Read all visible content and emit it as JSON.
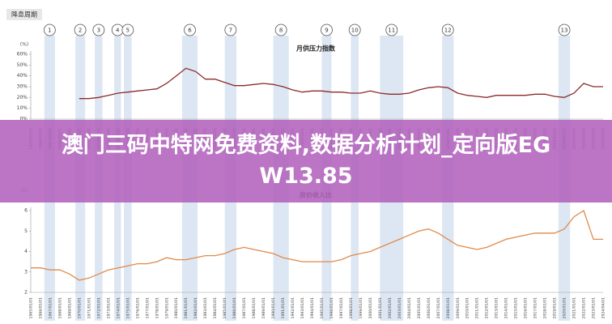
{
  "header": {
    "label": "降息周期"
  },
  "cycles": [
    {
      "label": "1",
      "start": 1966.4,
      "end": 1967.5
    },
    {
      "label": "2",
      "start": 1969.6,
      "end": 1970.6
    },
    {
      "label": "3",
      "start": 1971.6,
      "end": 1972.4
    },
    {
      "label": "4",
      "start": 1973.6,
      "end": 1974.3
    },
    {
      "label": "5",
      "start": 1974.6,
      "end": 1975.4
    },
    {
      "label": "6",
      "start": 1980.6,
      "end": 1982.2
    },
    {
      "label": "7",
      "start": 1985.0,
      "end": 1986.2
    },
    {
      "label": "8",
      "start": 1990.0,
      "end": 1991.6
    },
    {
      "label": "9",
      "start": 1995.0,
      "end": 1996.0
    },
    {
      "label": "10",
      "start": 1998.0,
      "end": 1998.8
    },
    {
      "label": "11",
      "start": 2001.0,
      "end": 2003.4
    },
    {
      "label": "12",
      "start": 2007.4,
      "end": 2008.6
    },
    {
      "label": "13",
      "start": 2019.4,
      "end": 2020.6
    }
  ],
  "chart_data": [
    {
      "type": "line",
      "title": "月供压力指数",
      "y_label": "(%)",
      "color": "#8b2a2a",
      "grid": false,
      "categories": [
        "1965/01/01",
        "1966/01/01",
        "1967/01/01",
        "1968/01/01",
        "1969/01/01",
        "1970/01/01",
        "1971/01/01",
        "1972/01/01",
        "1973/01/01",
        "1974/01/01",
        "1975/01/01",
        "1976/01/01",
        "1977/01/01",
        "1978/01/01",
        "1979/01/01",
        "1980/01/01",
        "1981/01/01",
        "1982/01/01",
        "1983/01/01",
        "1984/01/01",
        "1985/01/01",
        "1986/01/01",
        "1987/01/01",
        "1988/01/01",
        "1989/01/01",
        "1990/01/01",
        "1991/01/01",
        "1992/01/01",
        "1993/01/01",
        "1994/01/01",
        "1995/01/01",
        "1996/01/01",
        "1997/01/01",
        "1998/01/01",
        "1999/01/01",
        "2000/01/01",
        "2001/01/01",
        "2002/01/01",
        "2003/01/01",
        "2004/01/01",
        "2005/01/01",
        "2006/01/01",
        "2007/01/01",
        "2008/01/01",
        "2009/01/01",
        "2010/01/01",
        "2011/01/01",
        "2012/01/01",
        "2013/01/01",
        "2014/01/01",
        "2015/01/01",
        "2016/01/01",
        "2017/01/01",
        "2018/01/01",
        "2019/01/01",
        "2020/01/01",
        "2021/01/01",
        "2022/01/01",
        "2023/01/01",
        "2024/04/01"
      ],
      "values": [
        null,
        null,
        null,
        null,
        null,
        19,
        19,
        20,
        22,
        24,
        25,
        26,
        27,
        28,
        33,
        40,
        47,
        44,
        37,
        37,
        34,
        31,
        31,
        32,
        33,
        32,
        30,
        27,
        25,
        26,
        26,
        25,
        25,
        24,
        24,
        26,
        24,
        23,
        23,
        24,
        27,
        29,
        30,
        29,
        24,
        22,
        21,
        20,
        22,
        22,
        22,
        22,
        23,
        23,
        21,
        20,
        24,
        33,
        30,
        30
      ],
      "ylim": [
        0,
        60
      ],
      "yticks": [
        {
          "value": 0,
          "label": "0%"
        },
        {
          "value": 10,
          "label": "10%"
        },
        {
          "value": 20,
          "label": "20%"
        },
        {
          "value": 30,
          "label": "30%"
        },
        {
          "value": 40,
          "label": "40%"
        },
        {
          "value": 50,
          "label": "50%"
        },
        {
          "value": 60,
          "label": "60%"
        }
      ]
    },
    {
      "type": "line",
      "title": "房价收入比",
      "y_label": "(X)",
      "color": "#e08a4a",
      "grid": false,
      "categories": [
        "1965/01/01",
        "1966/01/01",
        "1967/01/01",
        "1968/01/01",
        "1969/01/01",
        "1970/01/01",
        "1971/01/01",
        "1972/01/01",
        "1973/01/01",
        "1974/01/01",
        "1975/01/01",
        "1976/01/01",
        "1977/01/01",
        "1978/01/01",
        "1979/01/01",
        "1980/01/01",
        "1981/01/01",
        "1982/01/01",
        "1983/01/01",
        "1984/01/01",
        "1985/01/01",
        "1986/01/01",
        "1987/01/01",
        "1988/01/01",
        "1989/01/01",
        "1990/01/01",
        "1991/01/01",
        "1992/01/01",
        "1993/01/01",
        "1994/01/01",
        "1995/01/01",
        "1996/01/01",
        "1997/01/01",
        "1998/01/01",
        "1999/01/01",
        "2000/01/01",
        "2001/01/01",
        "2002/01/01",
        "2003/01/01",
        "2004/01/01",
        "2005/01/01",
        "2006/01/01",
        "2007/01/01",
        "2008/01/01",
        "2009/01/01",
        "2010/01/01",
        "2011/01/01",
        "2012/01/01",
        "2013/01/01",
        "2014/01/01",
        "2015/01/01",
        "2016/01/01",
        "2017/01/01",
        "2018/01/01",
        "2019/01/01",
        "2020/01/01",
        "2021/01/01",
        "2022/01/01",
        "2023/01/01",
        "2024/04/01"
      ],
      "values": [
        3.2,
        3.2,
        3.1,
        3.1,
        2.9,
        2.6,
        2.7,
        2.9,
        3.1,
        3.2,
        3.3,
        3.4,
        3.4,
        3.5,
        3.7,
        3.6,
        3.6,
        3.7,
        3.8,
        3.8,
        3.9,
        4.1,
        4.2,
        4.1,
        4.0,
        3.9,
        3.7,
        3.6,
        3.5,
        3.5,
        3.5,
        3.5,
        3.6,
        3.8,
        3.9,
        4.0,
        4.2,
        4.4,
        4.6,
        4.8,
        5.0,
        5.1,
        4.9,
        4.6,
        4.3,
        4.2,
        4.1,
        4.2,
        4.4,
        4.6,
        4.7,
        4.8,
        4.9,
        4.9,
        4.9,
        5.1,
        5.7,
        6.0,
        4.6,
        4.6
      ],
      "ylim": [
        2,
        6
      ],
      "yticks": [
        2,
        3,
        4,
        5,
        6
      ]
    }
  ],
  "banner": {
    "text": "澳门三码中特网免费资料,数据分析计划_定向版EGW13.85"
  }
}
